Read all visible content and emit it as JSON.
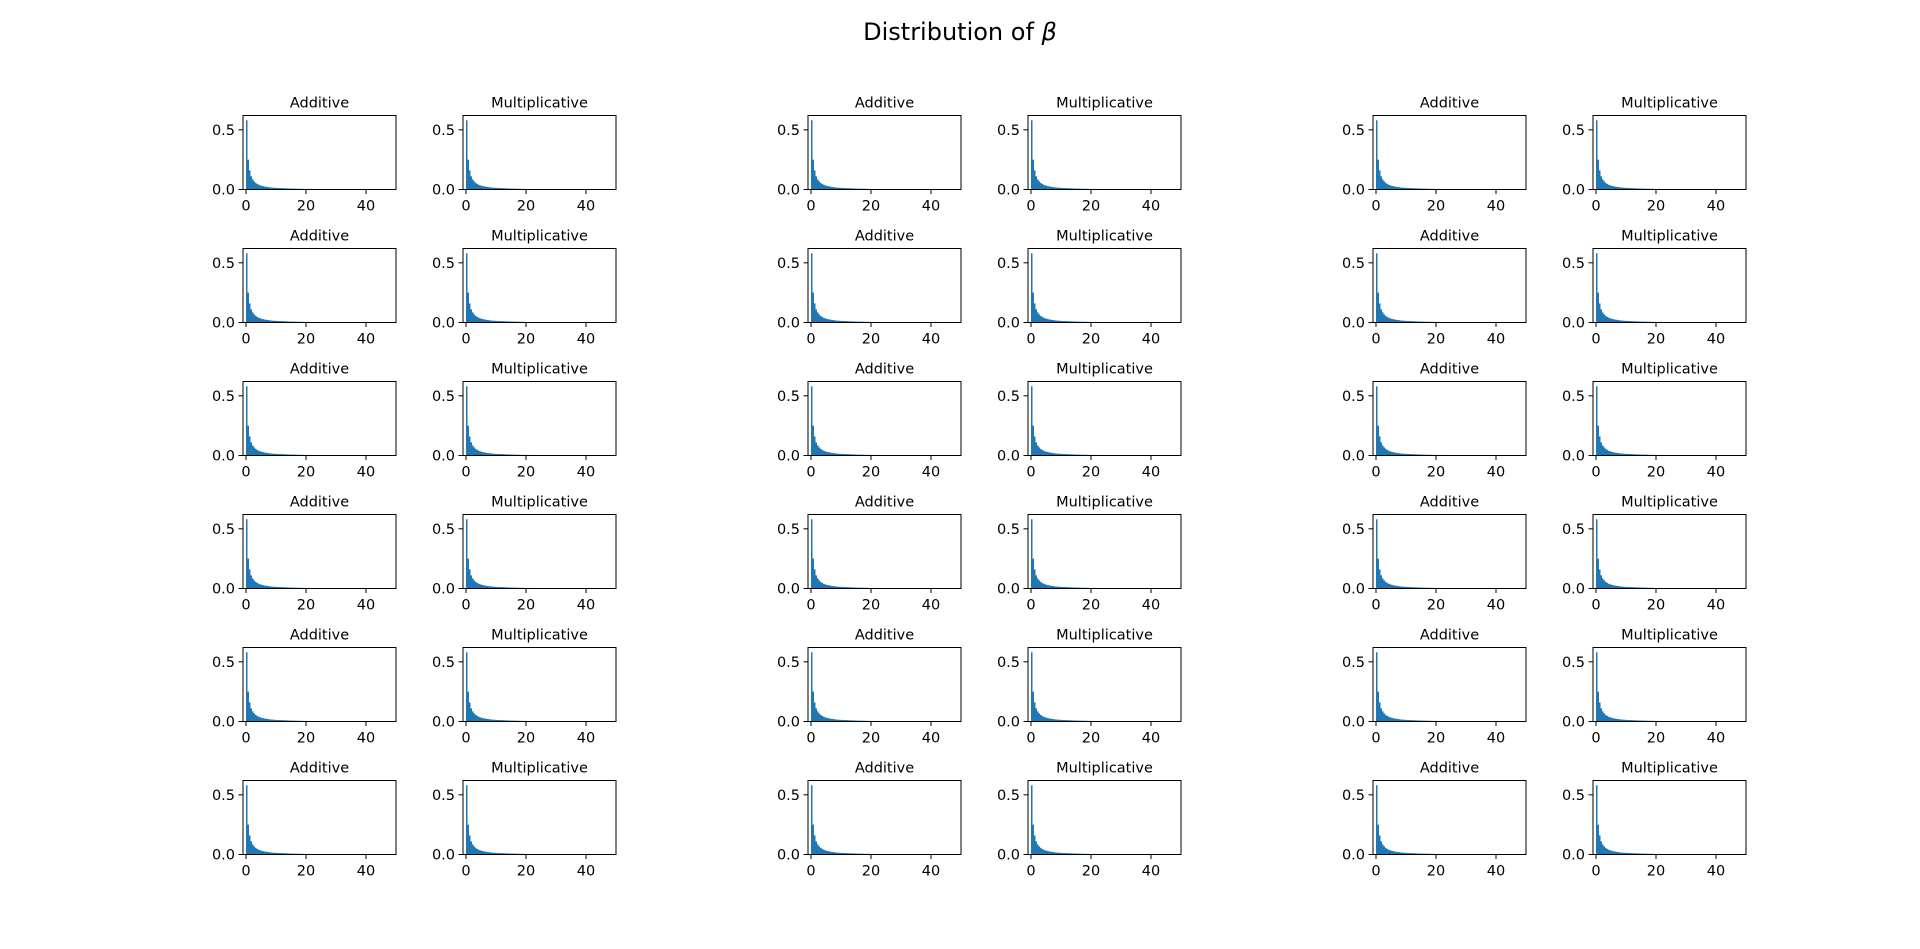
{
  "suptitle": {
    "prefix": "Distribution of ",
    "symbol": "β"
  },
  "colors": {
    "bars": "#1f77b4",
    "axes": "#000000",
    "background": "#ffffff"
  },
  "chart_data": {
    "type": "bar",
    "layout": {
      "rows": 6,
      "groups": 3,
      "panels_per_group": 2
    },
    "panel_titles": [
      "Additive",
      "Multiplicative"
    ],
    "xlim": [
      -1,
      50
    ],
    "ylim": [
      0,
      0.62
    ],
    "xticks": [
      0,
      20,
      40
    ],
    "yticks": [
      0.0,
      0.5
    ],
    "ytick_labels": [
      "0.0",
      "0.5"
    ],
    "grid": false,
    "histogram": {
      "bin_width": 0.5,
      "bin_starts": [
        0,
        0.5,
        1,
        1.5,
        2,
        2.5,
        3,
        3.5,
        4,
        4.5,
        5,
        5.5,
        6,
        6.5,
        7,
        7.5,
        8,
        8.5,
        9,
        9.5,
        10,
        11,
        12,
        13,
        14,
        15,
        16,
        17,
        18,
        19,
        20,
        22,
        24,
        26,
        28,
        30,
        32,
        34,
        36,
        38,
        40,
        42,
        44,
        46,
        48
      ],
      "densities": [
        0.58,
        0.25,
        0.16,
        0.11,
        0.085,
        0.068,
        0.056,
        0.047,
        0.04,
        0.035,
        0.031,
        0.028,
        0.025,
        0.023,
        0.021,
        0.019,
        0.017,
        0.016,
        0.015,
        0.014,
        0.013,
        0.012,
        0.011,
        0.0095,
        0.0085,
        0.0075,
        0.007,
        0.0062,
        0.0056,
        0.005,
        0.0045,
        0.004,
        0.0035,
        0.003,
        0.0026,
        0.0022,
        0.002,
        0.0018,
        0.0016,
        0.0015,
        0.0014,
        0.0013,
        0.0012,
        0.0011,
        0.001
      ]
    }
  }
}
